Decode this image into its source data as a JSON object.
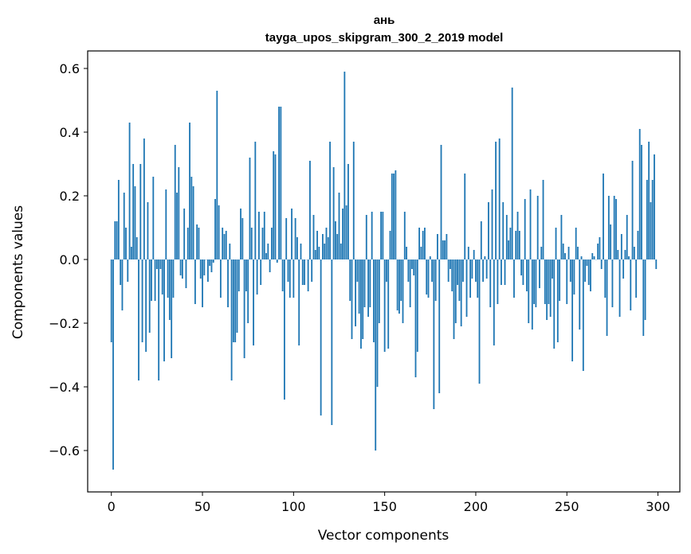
{
  "chart_data": {
    "type": "bar",
    "title": "ань",
    "subtitle": "tayga_upos_skipgram_300_2_2019 model",
    "xlabel": "Vector components",
    "ylabel": "Components values",
    "xlim": [
      -13,
      312
    ],
    "ylim": [
      -0.73,
      0.655
    ],
    "xticks": [
      0,
      50,
      100,
      150,
      200,
      250,
      300
    ],
    "yticks": [
      -0.6,
      -0.4,
      -0.2,
      0.0,
      0.2,
      0.4,
      0.6
    ],
    "ytick_labels": [
      "−0.6",
      "−0.4",
      "−0.2",
      "0.0",
      "0.2",
      "0.4",
      "0.6"
    ],
    "xtick_labels": [
      "0",
      "50",
      "100",
      "150",
      "200",
      "250",
      "300"
    ],
    "grid": false,
    "bar_color": "#1f77b4",
    "values": [
      -0.26,
      -0.66,
      0.12,
      0.12,
      0.25,
      -0.08,
      -0.16,
      0.21,
      0.1,
      -0.07,
      0.43,
      0.04,
      0.3,
      0.23,
      0.07,
      -0.38,
      0.3,
      -0.26,
      0.38,
      -0.29,
      0.18,
      -0.23,
      -0.13,
      0.26,
      -0.13,
      -0.03,
      -0.38,
      -0.03,
      -0.11,
      -0.32,
      0.22,
      -0.12,
      -0.19,
      -0.31,
      -0.12,
      0.36,
      0.21,
      0.29,
      -0.05,
      -0.06,
      0.16,
      -0.09,
      0.1,
      0.43,
      0.26,
      0.23,
      -0.14,
      0.11,
      0.1,
      -0.06,
      -0.15,
      -0.05,
      0.0,
      -0.07,
      -0.02,
      -0.04,
      -0.01,
      0.19,
      0.53,
      0.17,
      -0.12,
      0.1,
      0.08,
      0.09,
      -0.15,
      0.05,
      -0.38,
      -0.26,
      -0.26,
      -0.23,
      -0.1,
      0.16,
      0.13,
      -0.31,
      -0.1,
      -0.2,
      0.32,
      0.1,
      -0.27,
      0.37,
      -0.11,
      0.15,
      -0.08,
      0.1,
      0.15,
      0.02,
      0.05,
      -0.04,
      0.1,
      0.34,
      0.33,
      -0.01,
      0.48,
      0.48,
      -0.1,
      -0.44,
      0.13,
      -0.07,
      -0.12,
      0.16,
      -0.12,
      0.13,
      0.07,
      -0.27,
      0.05,
      -0.08,
      -0.08,
      0.0,
      -0.1,
      0.31,
      -0.07,
      0.14,
      0.03,
      0.09,
      0.04,
      -0.49,
      0.08,
      0.05,
      0.1,
      0.07,
      0.37,
      -0.52,
      0.29,
      0.12,
      0.08,
      0.21,
      0.05,
      0.16,
      0.59,
      0.17,
      0.3,
      -0.13,
      -0.25,
      0.37,
      -0.21,
      -0.07,
      -0.17,
      -0.28,
      -0.25,
      -0.15,
      0.14,
      -0.18,
      -0.15,
      0.15,
      -0.26,
      -0.6,
      -0.4,
      -0.2,
      0.15,
      0.15,
      -0.29,
      -0.07,
      -0.28,
      0.09,
      0.27,
      0.27,
      0.28,
      -0.16,
      -0.17,
      -0.13,
      -0.2,
      0.15,
      0.04,
      -0.07,
      -0.15,
      -0.03,
      -0.05,
      -0.37,
      -0.29,
      0.1,
      0.04,
      0.09,
      0.1,
      -0.11,
      -0.12,
      0.01,
      -0.07,
      -0.47,
      -0.13,
      0.08,
      -0.42,
      0.36,
      0.06,
      0.06,
      0.08,
      -0.07,
      -0.03,
      -0.1,
      -0.25,
      -0.2,
      -0.08,
      -0.13,
      -0.21,
      -0.07,
      0.27,
      -0.18,
      0.04,
      -0.12,
      -0.06,
      0.03,
      -0.07,
      -0.12,
      -0.39,
      0.12,
      -0.07,
      0.01,
      -0.06,
      0.18,
      -0.15,
      0.22,
      -0.27,
      0.37,
      -0.14,
      0.38,
      -0.08,
      0.18,
      -0.08,
      0.14,
      0.06,
      0.1,
      0.54,
      -0.12,
      0.09,
      0.15,
      0.09,
      -0.05,
      -0.08,
      0.19,
      -0.1,
      -0.2,
      0.22,
      -0.22,
      -0.14,
      -0.15,
      0.2,
      -0.09,
      0.04,
      0.25,
      -0.14,
      -0.19,
      -0.14,
      -0.18,
      -0.06,
      -0.28,
      0.1,
      -0.26,
      -0.13,
      0.14,
      0.05,
      0.02,
      -0.14,
      0.04,
      -0.07,
      -0.32,
      -0.11,
      0.1,
      0.04,
      -0.22,
      0.01,
      -0.35,
      -0.07,
      -0.02,
      -0.08,
      -0.1,
      0.02,
      0.01,
      0.0,
      0.05,
      0.07,
      -0.03,
      0.27,
      -0.12,
      -0.24,
      0.2,
      0.11,
      -0.15,
      0.2,
      0.19,
      0.03,
      -0.18,
      0.08,
      -0.06,
      0.03,
      0.14,
      0.01,
      -0.16,
      0.31,
      0.04,
      -0.12,
      0.09,
      0.41,
      0.36,
      -0.24,
      -0.19,
      0.25,
      0.37,
      0.18,
      0.25,
      0.33,
      -0.03
    ]
  }
}
